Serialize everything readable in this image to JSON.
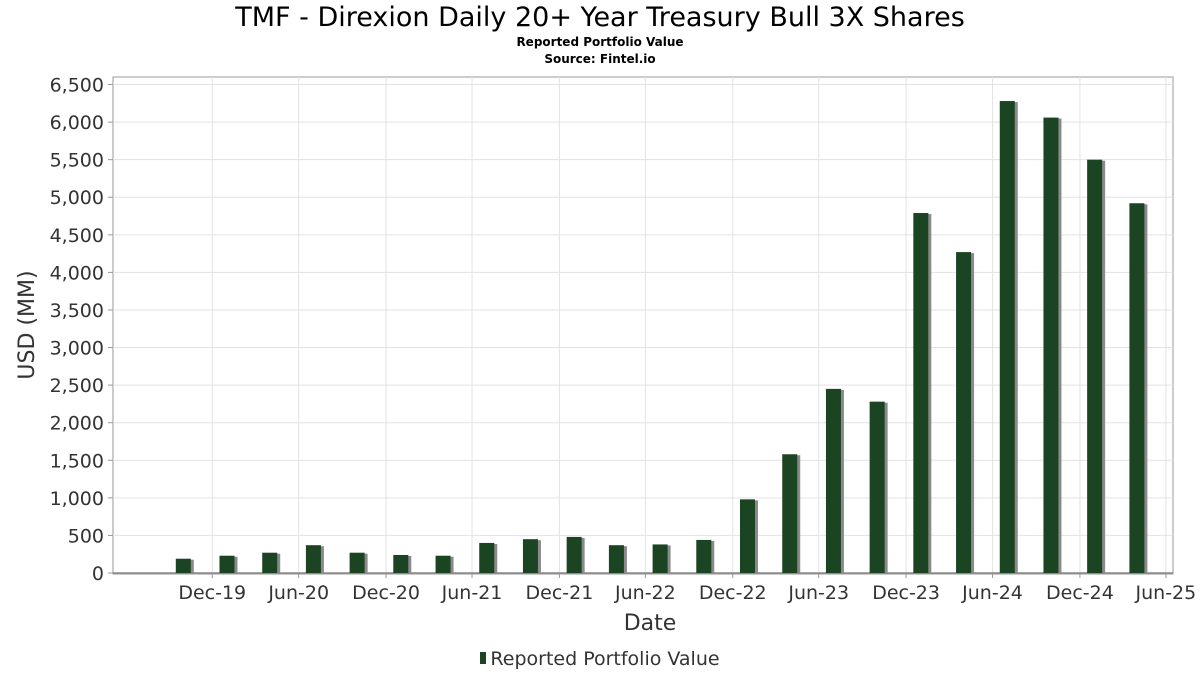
{
  "title": "TMF - Direxion Daily 20+ Year Treasury Bull 3X Shares",
  "subtitle": "Reported Portfolio Value",
  "source": "Source: Fintel.io",
  "chart_data": {
    "type": "bar",
    "xlabel": "Date",
    "ylabel": "USD (MM)",
    "ylim": [
      0,
      6600
    ],
    "yticks": [
      0,
      500,
      1000,
      1500,
      2000,
      2500,
      3000,
      3500,
      4000,
      4500,
      5000,
      5500,
      6000,
      6500
    ],
    "ytick_labels": [
      "0",
      "500",
      "1,000",
      "1,500",
      "2,000",
      "2,500",
      "3,000",
      "3,500",
      "4,000",
      "4,500",
      "5,000",
      "5,500",
      "6,000",
      "6,500"
    ],
    "xlim": [
      "2019-06-05",
      "2025-07-15"
    ],
    "xticks": [
      "2019-12-31",
      "2020-06-30",
      "2020-12-31",
      "2021-06-30",
      "2021-12-31",
      "2022-06-30",
      "2022-12-31",
      "2023-06-30",
      "2023-12-31",
      "2024-06-30",
      "2024-12-31",
      "2025-06-30"
    ],
    "xtick_labels": [
      "Dec-19",
      "Jun-20",
      "Dec-20",
      "Jun-21",
      "Dec-21",
      "Jun-22",
      "Dec-22",
      "Jun-23",
      "Dec-23",
      "Jun-24",
      "Dec-24",
      "Jun-25"
    ],
    "grid": true,
    "legend_position": "bottom-center",
    "series": [
      {
        "name": "Reported Portfolio Value",
        "color": "#1a4422",
        "points": [
          {
            "x": "2019-10-31",
            "y": 190
          },
          {
            "x": "2020-01-31",
            "y": 230
          },
          {
            "x": "2020-04-30",
            "y": 270
          },
          {
            "x": "2020-07-31",
            "y": 370
          },
          {
            "x": "2020-10-31",
            "y": 270
          },
          {
            "x": "2021-01-31",
            "y": 240
          },
          {
            "x": "2021-04-30",
            "y": 230
          },
          {
            "x": "2021-07-31",
            "y": 400
          },
          {
            "x": "2021-10-31",
            "y": 450
          },
          {
            "x": "2022-01-31",
            "y": 480
          },
          {
            "x": "2022-04-30",
            "y": 370
          },
          {
            "x": "2022-07-31",
            "y": 380
          },
          {
            "x": "2022-10-31",
            "y": 440
          },
          {
            "x": "2023-01-31",
            "y": 980
          },
          {
            "x": "2023-04-30",
            "y": 1580
          },
          {
            "x": "2023-07-31",
            "y": 2450
          },
          {
            "x": "2023-10-31",
            "y": 2280
          },
          {
            "x": "2024-01-31",
            "y": 4790
          },
          {
            "x": "2024-04-30",
            "y": 4270
          },
          {
            "x": "2024-07-31",
            "y": 6280
          },
          {
            "x": "2024-10-31",
            "y": 6060
          },
          {
            "x": "2025-01-31",
            "y": 5500
          },
          {
            "x": "2025-04-30",
            "y": 4920
          }
        ]
      }
    ]
  }
}
